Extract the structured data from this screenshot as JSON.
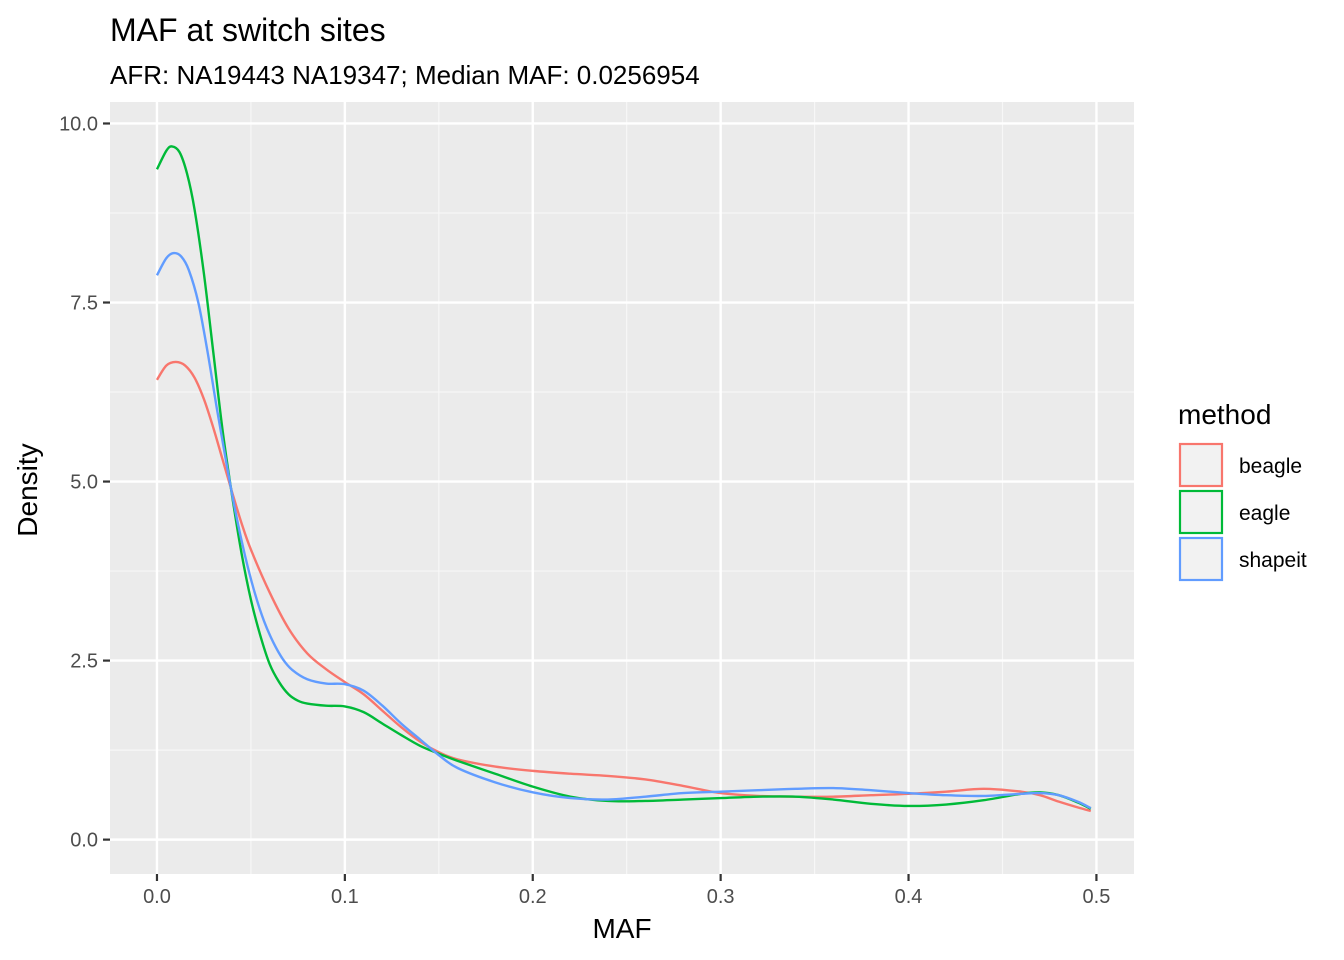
{
  "chart_data": {
    "type": "line",
    "title": "MAF at switch sites",
    "subtitle": "AFR: NA19443 NA19347; Median MAF: 0.0256954",
    "xlabel": "MAF",
    "ylabel": "Density",
    "xlim": [
      -0.025,
      0.52
    ],
    "ylim": [
      -0.48,
      10.3
    ],
    "x_ticks": [
      0.0,
      0.1,
      0.2,
      0.3,
      0.4,
      0.5
    ],
    "x_tick_labels": [
      "0.0",
      "0.1",
      "0.2",
      "0.3",
      "0.4",
      "0.5"
    ],
    "y_ticks": [
      0.0,
      2.5,
      5.0,
      7.5,
      10.0
    ],
    "y_tick_labels": [
      "0.0",
      "2.5",
      "5.0",
      "7.5",
      "10.0"
    ],
    "grid": true,
    "panel_background": "#ebebeb",
    "legend": {
      "title": "method",
      "placement": "right"
    },
    "series": [
      {
        "name": "beagle",
        "color": "#f8766d",
        "points": [
          [
            0.0,
            6.42
          ],
          [
            0.005,
            6.62
          ],
          [
            0.01,
            6.67
          ],
          [
            0.015,
            6.62
          ],
          [
            0.02,
            6.45
          ],
          [
            0.025,
            6.15
          ],
          [
            0.03,
            5.75
          ],
          [
            0.035,
            5.3
          ],
          [
            0.04,
            4.85
          ],
          [
            0.045,
            4.42
          ],
          [
            0.05,
            4.05
          ],
          [
            0.06,
            3.45
          ],
          [
            0.07,
            2.95
          ],
          [
            0.08,
            2.6
          ],
          [
            0.09,
            2.38
          ],
          [
            0.1,
            2.2
          ],
          [
            0.11,
            2.03
          ],
          [
            0.12,
            1.8
          ],
          [
            0.13,
            1.57
          ],
          [
            0.14,
            1.37
          ],
          [
            0.15,
            1.22
          ],
          [
            0.16,
            1.12
          ],
          [
            0.18,
            1.02
          ],
          [
            0.2,
            0.96
          ],
          [
            0.22,
            0.92
          ],
          [
            0.24,
            0.89
          ],
          [
            0.26,
            0.84
          ],
          [
            0.28,
            0.75
          ],
          [
            0.3,
            0.65
          ],
          [
            0.32,
            0.61
          ],
          [
            0.34,
            0.6
          ],
          [
            0.36,
            0.6
          ],
          [
            0.38,
            0.62
          ],
          [
            0.4,
            0.64
          ],
          [
            0.42,
            0.67
          ],
          [
            0.44,
            0.71
          ],
          [
            0.46,
            0.67
          ],
          [
            0.47,
            0.62
          ],
          [
            0.48,
            0.53
          ],
          [
            0.49,
            0.45
          ],
          [
            0.497,
            0.4
          ]
        ]
      },
      {
        "name": "eagle",
        "color": "#00ba38",
        "points": [
          [
            0.0,
            9.36
          ],
          [
            0.005,
            9.62
          ],
          [
            0.008,
            9.68
          ],
          [
            0.012,
            9.6
          ],
          [
            0.016,
            9.3
          ],
          [
            0.02,
            8.8
          ],
          [
            0.025,
            7.9
          ],
          [
            0.03,
            6.8
          ],
          [
            0.035,
            5.7
          ],
          [
            0.04,
            4.8
          ],
          [
            0.045,
            4.0
          ],
          [
            0.05,
            3.35
          ],
          [
            0.055,
            2.85
          ],
          [
            0.06,
            2.45
          ],
          [
            0.065,
            2.2
          ],
          [
            0.07,
            2.03
          ],
          [
            0.075,
            1.94
          ],
          [
            0.08,
            1.9
          ],
          [
            0.09,
            1.87
          ],
          [
            0.1,
            1.86
          ],
          [
            0.11,
            1.78
          ],
          [
            0.12,
            1.62
          ],
          [
            0.13,
            1.46
          ],
          [
            0.14,
            1.31
          ],
          [
            0.15,
            1.2
          ],
          [
            0.16,
            1.1
          ],
          [
            0.18,
            0.92
          ],
          [
            0.2,
            0.74
          ],
          [
            0.22,
            0.6
          ],
          [
            0.24,
            0.54
          ],
          [
            0.26,
            0.54
          ],
          [
            0.28,
            0.56
          ],
          [
            0.3,
            0.58
          ],
          [
            0.32,
            0.6
          ],
          [
            0.34,
            0.6
          ],
          [
            0.36,
            0.56
          ],
          [
            0.38,
            0.5
          ],
          [
            0.4,
            0.47
          ],
          [
            0.42,
            0.49
          ],
          [
            0.44,
            0.55
          ],
          [
            0.46,
            0.64
          ],
          [
            0.47,
            0.66
          ],
          [
            0.48,
            0.62
          ],
          [
            0.49,
            0.52
          ],
          [
            0.497,
            0.43
          ]
        ]
      },
      {
        "name": "shapeit",
        "color": "#619cff",
        "points": [
          [
            0.0,
            7.88
          ],
          [
            0.005,
            8.12
          ],
          [
            0.009,
            8.19
          ],
          [
            0.013,
            8.14
          ],
          [
            0.017,
            7.95
          ],
          [
            0.022,
            7.5
          ],
          [
            0.027,
            6.8
          ],
          [
            0.032,
            6.0
          ],
          [
            0.037,
            5.25
          ],
          [
            0.042,
            4.55
          ],
          [
            0.047,
            3.95
          ],
          [
            0.052,
            3.45
          ],
          [
            0.057,
            3.05
          ],
          [
            0.062,
            2.75
          ],
          [
            0.067,
            2.52
          ],
          [
            0.072,
            2.37
          ],
          [
            0.08,
            2.24
          ],
          [
            0.09,
            2.18
          ],
          [
            0.1,
            2.17
          ],
          [
            0.11,
            2.08
          ],
          [
            0.12,
            1.87
          ],
          [
            0.13,
            1.62
          ],
          [
            0.14,
            1.4
          ],
          [
            0.15,
            1.18
          ],
          [
            0.16,
            1.0
          ],
          [
            0.18,
            0.8
          ],
          [
            0.2,
            0.66
          ],
          [
            0.22,
            0.58
          ],
          [
            0.24,
            0.56
          ],
          [
            0.26,
            0.6
          ],
          [
            0.28,
            0.65
          ],
          [
            0.3,
            0.67
          ],
          [
            0.32,
            0.69
          ],
          [
            0.34,
            0.71
          ],
          [
            0.36,
            0.72
          ],
          [
            0.38,
            0.69
          ],
          [
            0.4,
            0.65
          ],
          [
            0.42,
            0.62
          ],
          [
            0.44,
            0.61
          ],
          [
            0.46,
            0.64
          ],
          [
            0.47,
            0.65
          ],
          [
            0.48,
            0.62
          ],
          [
            0.49,
            0.53
          ],
          [
            0.497,
            0.44
          ]
        ]
      }
    ]
  }
}
